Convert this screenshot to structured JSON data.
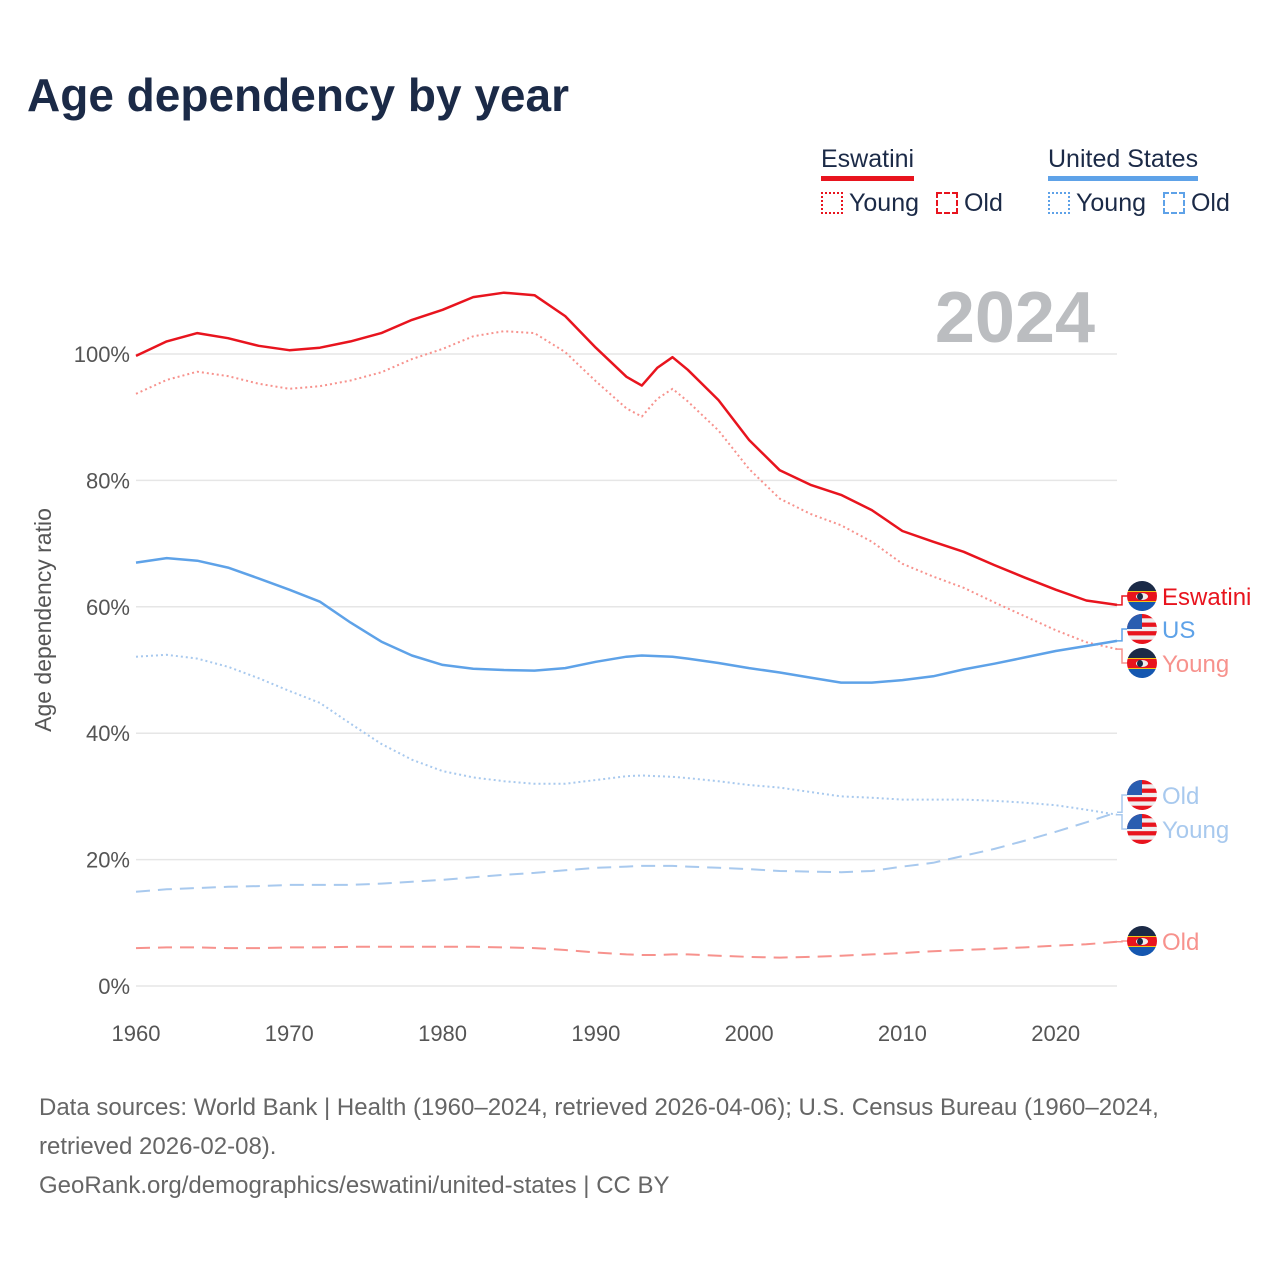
{
  "title": "Age dependency by year",
  "legend": {
    "groups": [
      {
        "name": "Eswatini",
        "color": "#e8141e",
        "items": [
          "Young",
          "Old"
        ]
      },
      {
        "name": "United States",
        "color": "#5ea2e8",
        "items": [
          "Young",
          "Old"
        ]
      }
    ]
  },
  "year_badge": "2024",
  "footer": {
    "sources": "Data sources: World Bank | Health (1960–2024, retrieved 2026-04-06); U.S. Census Bureau (1960–2024, retrieved 2026-02-08).",
    "link": "GeoRank.org/demographics/eswatini/united-states | CC BY"
  },
  "chart_data": {
    "type": "line",
    "title": "Age dependency by year",
    "xlabel": "",
    "ylabel": "Age dependency ratio",
    "xlim": [
      1960,
      2024
    ],
    "ylim": [
      0,
      110
    ],
    "xticks": [
      "1960",
      "1970",
      "1980",
      "1990",
      "2000",
      "2010",
      "2020"
    ],
    "xtick_values": [
      1960,
      1970,
      1980,
      1990,
      2000,
      2010,
      2020
    ],
    "yticks": [
      "0%",
      "20%",
      "40%",
      "60%",
      "80%",
      "100%"
    ],
    "ytick_values": [
      0,
      20,
      40,
      60,
      80,
      100
    ],
    "grid": true,
    "x": [
      1960,
      1962,
      1964,
      1966,
      1968,
      1970,
      1972,
      1974,
      1976,
      1978,
      1980,
      1982,
      1984,
      1986,
      1988,
      1990,
      1992,
      1993,
      1994,
      1995,
      1996,
      1998,
      2000,
      2002,
      2004,
      2006,
      2008,
      2010,
      2012,
      2014,
      2016,
      2018,
      2020,
      2022,
      2024
    ],
    "series": [
      {
        "name": "Eswatini",
        "end_label": "Eswatini",
        "flag": "eswatini",
        "color": "#e8141e",
        "dash": "solid",
        "values": [
          99.7,
          102,
          103.3,
          102.5,
          101.3,
          100.6,
          101,
          102,
          103.3,
          105.4,
          107,
          109,
          109.7,
          109.3,
          106,
          101,
          96.4,
          95,
          97.8,
          99.5,
          97.5,
          92.7,
          86.4,
          81.6,
          79.3,
          77.7,
          75.3,
          72,
          70.3,
          68.7,
          66.6,
          64.6,
          62.7,
          61,
          60.3
        ]
      },
      {
        "name": "Eswatini Young",
        "end_label": "Young",
        "flag": "eswatini",
        "color": "#f7928d",
        "dash": "dotted",
        "values": [
          93.7,
          95.9,
          97.2,
          96.5,
          95.3,
          94.5,
          94.9,
          95.8,
          97.1,
          99.2,
          100.8,
          102.8,
          103.6,
          103.3,
          100.3,
          95.7,
          91.4,
          90.1,
          92.9,
          94.5,
          92.5,
          87.9,
          81.8,
          77.1,
          74.7,
          72.9,
          70.3,
          66.8,
          64.8,
          63,
          60.7,
          58.5,
          56.3,
          54.4,
          53.3
        ]
      },
      {
        "name": "Eswatini Old",
        "end_label": "Old",
        "flag": "eswatini",
        "color": "#f7928d",
        "dash": "dashed",
        "values": [
          6,
          6.1,
          6.1,
          6,
          6,
          6.1,
          6.1,
          6.2,
          6.2,
          6.2,
          6.2,
          6.2,
          6.1,
          6,
          5.7,
          5.3,
          5,
          4.9,
          4.9,
          5,
          5,
          4.8,
          4.6,
          4.5,
          4.6,
          4.8,
          5,
          5.2,
          5.5,
          5.7,
          5.9,
          6.1,
          6.4,
          6.6,
          7
        ]
      },
      {
        "name": "United States",
        "end_label": "US",
        "flag": "us",
        "color": "#5ea2e8",
        "dash": "solid",
        "values": [
          67,
          67.7,
          67.3,
          66.2,
          64.5,
          62.7,
          60.8,
          57.5,
          54.5,
          52.3,
          50.8,
          50.2,
          50,
          49.9,
          50.3,
          51.3,
          52.1,
          52.3,
          52.2,
          52.1,
          51.8,
          51.1,
          50.3,
          49.6,
          48.8,
          48,
          48,
          48.4,
          49,
          50.1,
          51,
          52,
          53,
          53.8,
          54.6
        ]
      },
      {
        "name": "United States Young",
        "end_label": "Young",
        "flag": "us",
        "color": "#a8c9ee",
        "dash": "dotted",
        "values": [
          52.1,
          52.4,
          51.8,
          50.5,
          48.7,
          46.7,
          44.8,
          41.5,
          38.3,
          35.8,
          34,
          33,
          32.4,
          32,
          32,
          32.6,
          33.2,
          33.3,
          33.2,
          33.1,
          32.9,
          32.4,
          31.8,
          31.4,
          30.7,
          30,
          29.8,
          29.5,
          29.5,
          29.5,
          29.3,
          29,
          28.6,
          27.9,
          27.1
        ]
      },
      {
        "name": "United States Old",
        "end_label": "Old",
        "flag": "us",
        "color": "#a8c9ee",
        "dash": "dashed",
        "values": [
          14.9,
          15.3,
          15.5,
          15.7,
          15.8,
          16,
          16,
          16,
          16.2,
          16.5,
          16.8,
          17.2,
          17.6,
          17.9,
          18.3,
          18.7,
          18.9,
          19,
          19,
          19,
          18.9,
          18.7,
          18.5,
          18.2,
          18.1,
          18,
          18.2,
          18.9,
          19.5,
          20.6,
          21.7,
          23,
          24.4,
          25.9,
          27.5
        ]
      }
    ]
  }
}
